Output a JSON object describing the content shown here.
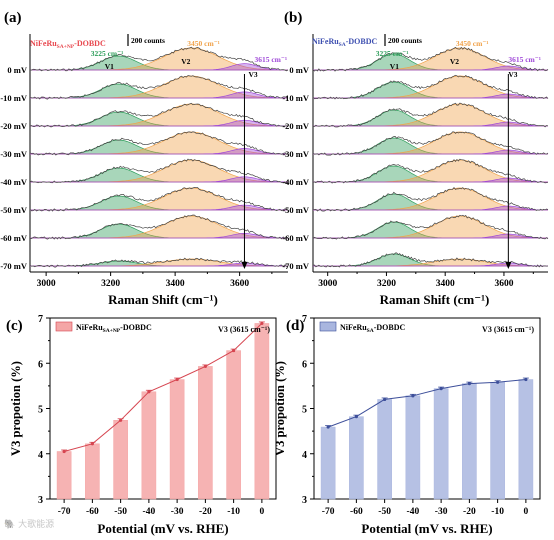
{
  "chart_data": [
    {
      "type": "line",
      "panel_label": "(a)",
      "sample": {
        "base": "NiFeRu",
        "sub": "SA+NP",
        "rest": "-DOBDC",
        "color": "#e8484f"
      },
      "scale_bar": "200 counts",
      "xlabel": "Raman Shift (cm⁻¹)",
      "xlim": [
        2950,
        3750
      ],
      "x_ticks": [
        "3000",
        "3200",
        "3400",
        "3600"
      ],
      "traces": [
        "0 mV",
        "-10 mV",
        "-20 mV",
        "-30 mV",
        "-40 mV",
        "-50 mV",
        "-60 mV",
        "-70 mV"
      ],
      "peaks": [
        {
          "name": "V1",
          "position": "3225 cm⁻¹",
          "center": 3225,
          "color": "#2f9e5b"
        },
        {
          "name": "V2",
          "position": "3450 cm⁻¹",
          "center": 3450,
          "color": "#f0a24a"
        },
        {
          "name": "V3",
          "position": "3615 cm⁻¹",
          "center": 3615,
          "color": "#a04ad8"
        }
      ],
      "marker_line_x": 3615
    },
    {
      "type": "line",
      "panel_label": "(b)",
      "sample": {
        "base": "NiFeRu",
        "sub": "SA",
        "rest": "-DOBDC",
        "color": "#3d4fb0"
      },
      "scale_bar": "200 counts",
      "xlabel": "Raman Shift (cm⁻¹)",
      "xlim": [
        2950,
        3750
      ],
      "x_ticks": [
        "3000",
        "3200",
        "3400",
        "3600"
      ],
      "traces": [
        "0 mV",
        "-10 mV",
        "-20 mV",
        "-30 mV",
        "-40 mV",
        "-50 mV",
        "-60 mV",
        "-70 mV"
      ],
      "peaks": [
        {
          "name": "V1",
          "position": "3225 cm⁻¹",
          "center": 3225,
          "color": "#2f9e5b"
        },
        {
          "name": "V2",
          "position": "3450 cm⁻¹",
          "center": 3450,
          "color": "#f0a24a"
        },
        {
          "name": "V3",
          "position": "3615 cm⁻¹",
          "center": 3615,
          "color": "#a04ad8"
        }
      ],
      "marker_line_x": 3615
    },
    {
      "type": "bar",
      "panel_label": "(c)",
      "legend": {
        "base": "NiFeRu",
        "sub": "SA+NP",
        "rest": "-DOBDC"
      },
      "annotation": "V3 (3615 cm⁻¹)",
      "xlabel": "Potential (mV vs. RHE)",
      "ylabel": "V3 propotion (%)",
      "categories": [
        "-70",
        "-60",
        "-50",
        "-40",
        "-30",
        "-20",
        "-10",
        "0"
      ],
      "values": [
        4.05,
        4.22,
        4.74,
        5.37,
        5.64,
        5.93,
        6.28,
        6.88
      ],
      "ylim": [
        3,
        7
      ],
      "y_ticks": [
        "3",
        "4",
        "5",
        "6",
        "7"
      ],
      "bar_color": "#f4a6a6",
      "line_color": "#d64550"
    },
    {
      "type": "bar",
      "panel_label": "(d)",
      "legend": {
        "base": "NiFeRu",
        "sub": "SA",
        "rest": "-DOBDC"
      },
      "annotation": "V3 (3615 cm⁻¹)",
      "xlabel": "Potential (mV vs. RHE)",
      "ylabel": "V3 propotion (%)",
      "categories": [
        "-70",
        "-60",
        "-50",
        "-40",
        "-30",
        "-20",
        "-10",
        "0"
      ],
      "values": [
        4.59,
        4.82,
        5.2,
        5.28,
        5.44,
        5.55,
        5.58,
        5.64
      ],
      "ylim": [
        3,
        7
      ],
      "y_ticks": [
        "3",
        "4",
        "5",
        "6",
        "7"
      ],
      "bar_color": "#a9b6df",
      "line_color": "#3d4f9a"
    }
  ],
  "watermark": "🐘 大歌能源"
}
